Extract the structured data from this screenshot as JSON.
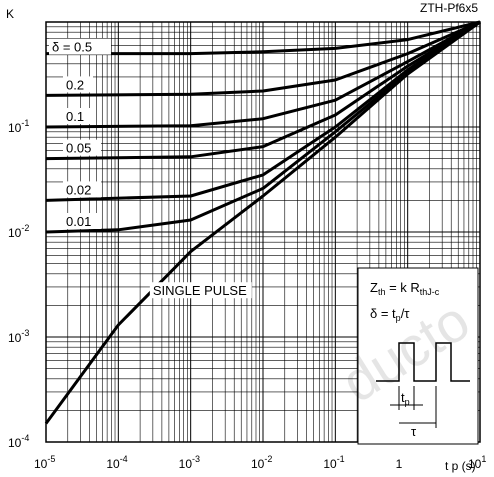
{
  "chart_data": {
    "type": "line",
    "title": "",
    "corner_label": "ZTH-Pf6x5",
    "ylabel": "K",
    "xlabel": "t p (s)",
    "x_scale": "log",
    "y_scale": "log",
    "xlim": [
      1e-05,
      10
    ],
    "ylim": [
      0.0001,
      1
    ],
    "grid": true,
    "x_ticks": [
      {
        "value": 1e-05,
        "base": "10",
        "exp": "-5"
      },
      {
        "value": 0.0001,
        "base": "10",
        "exp": "-4"
      },
      {
        "value": 0.001,
        "base": "10",
        "exp": "-3"
      },
      {
        "value": 0.01,
        "base": "10",
        "exp": "-2"
      },
      {
        "value": 0.1,
        "base": "10",
        "exp": "-1"
      },
      {
        "value": 1,
        "base": "1",
        "exp": ""
      },
      {
        "value": 10,
        "base": "10",
        "exp": "1"
      }
    ],
    "y_ticks": [
      {
        "value": 0.1,
        "base": "10",
        "exp": "-1"
      },
      {
        "value": 0.01,
        "base": "10",
        "exp": "-2"
      },
      {
        "value": 0.001,
        "base": "10",
        "exp": "-3"
      },
      {
        "value": 0.0001,
        "base": "10",
        "exp": "-4"
      }
    ],
    "series": [
      {
        "name": "δ = 0.5",
        "points": [
          [
            1e-05,
            0.5
          ],
          [
            0.001,
            0.5
          ],
          [
            0.01,
            0.52
          ],
          [
            0.1,
            0.56
          ],
          [
            1,
            0.68
          ],
          [
            10,
            1
          ]
        ]
      },
      {
        "name": "0.2",
        "points": [
          [
            1e-05,
            0.2
          ],
          [
            0.001,
            0.205
          ],
          [
            0.01,
            0.22
          ],
          [
            0.1,
            0.28
          ],
          [
            1,
            0.5
          ],
          [
            10,
            1
          ]
        ]
      },
      {
        "name": "0.1",
        "points": [
          [
            1e-05,
            0.1
          ],
          [
            0.001,
            0.103
          ],
          [
            0.01,
            0.12
          ],
          [
            0.1,
            0.18
          ],
          [
            1,
            0.42
          ],
          [
            10,
            1
          ]
        ]
      },
      {
        "name": "0.05",
        "points": [
          [
            1e-05,
            0.05
          ],
          [
            0.001,
            0.052
          ],
          [
            0.01,
            0.065
          ],
          [
            0.1,
            0.13
          ],
          [
            1,
            0.38
          ],
          [
            10,
            1
          ]
        ]
      },
      {
        "name": "0.02",
        "points": [
          [
            1e-05,
            0.02
          ],
          [
            0.001,
            0.022
          ],
          [
            0.01,
            0.035
          ],
          [
            0.1,
            0.1
          ],
          [
            1,
            0.35
          ],
          [
            10,
            1
          ]
        ]
      },
      {
        "name": "0.01",
        "points": [
          [
            1e-05,
            0.01
          ],
          [
            0.0001,
            0.0105
          ],
          [
            0.001,
            0.013
          ],
          [
            0.01,
            0.026
          ],
          [
            0.1,
            0.09
          ],
          [
            1,
            0.33
          ],
          [
            10,
            1
          ]
        ]
      },
      {
        "name": "SINGLE PULSE",
        "points": [
          [
            1e-05,
            0.00015
          ],
          [
            0.0001,
            0.0013
          ],
          [
            0.001,
            0.0065
          ],
          [
            0.01,
            0.022
          ],
          [
            0.1,
            0.08
          ],
          [
            1,
            0.32
          ],
          [
            10,
            1
          ]
        ]
      }
    ],
    "annotations": {
      "formula_line1_main": "Z",
      "formula_line1_sub": "th",
      "formula_line1_rest": " = k R",
      "formula_line1_sub2": "thJ-c",
      "formula_line2_main": "δ = t",
      "formula_line2_sub": "p",
      "formula_line2_rest": "/τ",
      "pulse_tp_label": "t",
      "pulse_tp_sub": "p",
      "pulse_tau_label": "τ"
    }
  },
  "watermark_text": "ducto"
}
